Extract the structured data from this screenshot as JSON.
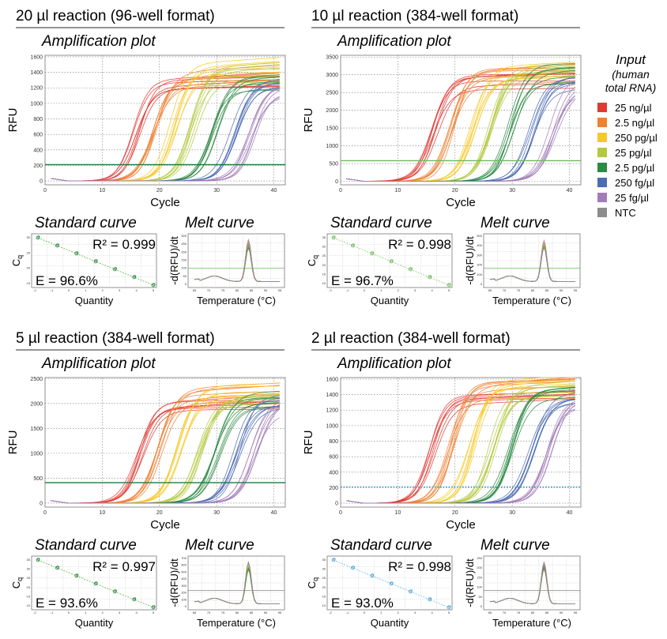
{
  "legend": {
    "title": "Input",
    "subtitle_line1": "(human",
    "subtitle_line2": "total RNA)",
    "items": [
      {
        "label": "25 ng/µl",
        "color": "#e03a33"
      },
      {
        "label": "2.5 ng/µl",
        "color": "#ef8132"
      },
      {
        "label": "250 pg/µl",
        "color": "#f7c928"
      },
      {
        "label": "25 pg/µl",
        "color": "#b4c940"
      },
      {
        "label": "2.5 pg/µl",
        "color": "#2b8a43"
      },
      {
        "label": "250 fg/µl",
        "color": "#4c6cb3"
      },
      {
        "label": "25 fg/µl",
        "color": "#a27cb8"
      },
      {
        "label": "NTC",
        "color": "#8c8c8c"
      }
    ]
  },
  "chart_data": [
    {
      "type": "line",
      "panel_title": "20 µl reaction (96-well format)",
      "title": "Amplification plot",
      "xlabel": "Cycle",
      "ylabel": "RFU",
      "xlim": [
        0,
        42
      ],
      "ylim": [
        -50,
        1620
      ],
      "x_ticks": [
        0,
        10,
        20,
        30,
        40
      ],
      "y_ticks": [
        0,
        200,
        400,
        600,
        800,
        1000,
        1200,
        1400,
        1600
      ],
      "threshold": 210,
      "threshold_color": "#1f7a3a",
      "series": [
        {
          "color": "#e03a33",
          "ct": 14,
          "plateau": [
            1150,
            1300
          ]
        },
        {
          "color": "#ef8132",
          "ct": 17,
          "plateau": [
            1200,
            1400
          ]
        },
        {
          "color": "#f7c928",
          "ct": 20.5,
          "plateau": [
            1300,
            1500
          ]
        },
        {
          "color": "#b4c940",
          "ct": 24,
          "plateau": [
            1250,
            1450
          ]
        },
        {
          "color": "#2b8a43",
          "ct": 27.5,
          "plateau": [
            1150,
            1350
          ]
        },
        {
          "color": "#4c6cb3",
          "ct": 31,
          "plateau": [
            1100,
            1300
          ]
        },
        {
          "color": "#a27cb8",
          "ct": 34,
          "plateau": [
            1050,
            1250
          ]
        }
      ],
      "standard_curve": {
        "title": "Standard curve",
        "xlabel": "Quantity",
        "ylabel": "C",
        "ylabel_sub": "q",
        "r2_label": "R² = 0.999",
        "e_label": "E = 96.6%",
        "point_color": "#2b8a43",
        "line_color": "#6dbb5a",
        "x_ticks": [
          "-2",
          "-1",
          "0",
          "1",
          "2",
          "3",
          "4",
          "5"
        ],
        "y_ticks": [
          "30",
          "25",
          "20",
          "15"
        ]
      },
      "melt_curve": {
        "title": "Melt curve",
        "xlabel": "Temperature (°C)",
        "ylabel": "-d(RFU)/dt",
        "peak_temp": 84,
        "y_ticks": [
          "300",
          "250",
          "200",
          "150",
          "100",
          "50",
          "0"
        ],
        "x_ticks": [
          "65",
          "70",
          "75",
          "80",
          "85",
          "90",
          "95"
        ],
        "threshold_color": "#6dbb5a"
      }
    },
    {
      "type": "line",
      "panel_title": "10 µl reaction (384-well format)",
      "title": "Amplification plot",
      "xlabel": "Cycle",
      "ylabel": "RFU",
      "xlim": [
        0,
        42
      ],
      "ylim": [
        -100,
        3550
      ],
      "x_ticks": [
        0,
        10,
        20,
        30,
        40
      ],
      "y_ticks": [
        0,
        500,
        1000,
        1500,
        2000,
        2500,
        3000,
        3500
      ],
      "threshold": 580,
      "threshold_color": "#6dbb5a",
      "series": [
        {
          "color": "#e03a33",
          "ct": 14.5,
          "plateau": [
            2500,
            3100
          ]
        },
        {
          "color": "#ef8132",
          "ct": 17.5,
          "plateau": [
            2600,
            3200
          ]
        },
        {
          "color": "#f7c928",
          "ct": 21,
          "plateau": [
            2700,
            3300
          ]
        },
        {
          "color": "#b4c940",
          "ct": 24.5,
          "plateau": [
            2700,
            3300
          ]
        },
        {
          "color": "#2b8a43",
          "ct": 28,
          "plateau": [
            2600,
            3350
          ]
        },
        {
          "color": "#4c6cb3",
          "ct": 31.5,
          "plateau": [
            2500,
            3100
          ]
        },
        {
          "color": "#a27cb8",
          "ct": 35,
          "plateau": [
            2300,
            3000
          ]
        }
      ],
      "standard_curve": {
        "title": "Standard curve",
        "xlabel": "Quantity",
        "ylabel": "C",
        "ylabel_sub": "q",
        "r2_label": "R² = 0.998",
        "e_label": "E = 96.7%",
        "point_color": "#6dbb5a",
        "line_color": "#9ad07f",
        "x_ticks": [
          "-2",
          "-1",
          "0",
          "1",
          "2",
          "3",
          "4",
          "5"
        ],
        "y_ticks": [
          "35",
          "30",
          "25",
          "20",
          "15",
          "10"
        ]
      },
      "melt_curve": {
        "title": "Melt curve",
        "xlabel": "Temperature (°C)",
        "ylabel": "-d(RFU)/dt",
        "peak_temp": 84,
        "y_ticks": [
          "500",
          "400",
          "300",
          "200",
          "100",
          "0"
        ],
        "x_ticks": [
          "65",
          "70",
          "75",
          "80",
          "85",
          "90",
          "95"
        ],
        "threshold_color": "#6dbb5a"
      }
    },
    {
      "type": "line",
      "panel_title": "5 µl reaction (384-well format)",
      "title": "Amplification plot",
      "xlabel": "Cycle",
      "ylabel": "RFU",
      "xlim": [
        0,
        42
      ],
      "ylim": [
        -80,
        2520
      ],
      "x_ticks": [
        0,
        10,
        20,
        30,
        40
      ],
      "y_ticks": [
        0,
        500,
        1000,
        1500,
        2000,
        2500
      ],
      "threshold": 410,
      "threshold_color": "#1f7a3a",
      "series": [
        {
          "color": "#e03a33",
          "ct": 14.5,
          "plateau": [
            1850,
            2050
          ]
        },
        {
          "color": "#ef8132",
          "ct": 18,
          "plateau": [
            1900,
            2300
          ]
        },
        {
          "color": "#f7c928",
          "ct": 21.5,
          "plateau": [
            2000,
            2350
          ]
        },
        {
          "color": "#b4c940",
          "ct": 25,
          "plateau": [
            1950,
            2300
          ]
        },
        {
          "color": "#2b8a43",
          "ct": 28,
          "plateau": [
            1900,
            2250
          ]
        },
        {
          "color": "#4c6cb3",
          "ct": 31.5,
          "plateau": [
            1850,
            2150
          ]
        },
        {
          "color": "#a27cb8",
          "ct": 34.5,
          "plateau": [
            1800,
            2050
          ]
        }
      ],
      "standard_curve": {
        "title": "Standard curve",
        "xlabel": "Quantity",
        "ylabel": "C",
        "ylabel_sub": "q",
        "r2_label": "R² = 0.997",
        "e_label": "E = 93.6%",
        "point_color": "#2b8a43",
        "line_color": "#6dbb5a",
        "x_ticks": [
          "-2",
          "-1",
          "0",
          "1",
          "2",
          "3",
          "4",
          "5"
        ],
        "y_ticks": [
          "35",
          "30",
          "25",
          "20",
          "15",
          "10"
        ]
      },
      "melt_curve": {
        "title": "Melt curve",
        "xlabel": "Temperature (°C)",
        "ylabel": "-d(RFU)/dt",
        "peak_temp": 84,
        "y_ticks": [
          "700",
          "600",
          "500",
          "400",
          "300",
          "200",
          "100",
          "0"
        ],
        "x_ticks": [
          "65",
          "70",
          "75",
          "80",
          "85",
          "90",
          "95"
        ],
        "threshold_color": "#888888"
      }
    },
    {
      "type": "line",
      "panel_title": "2 µl reaction (384-well format)",
      "title": "Amplification plot",
      "xlabel": "Cycle",
      "ylabel": "RFU",
      "xlim": [
        0,
        42
      ],
      "ylim": [
        -50,
        1620
      ],
      "x_ticks": [
        0,
        10,
        20,
        30,
        40
      ],
      "y_ticks": [
        0,
        200,
        400,
        600,
        800,
        1000,
        1200,
        1400,
        1600
      ],
      "threshold": 210,
      "threshold_color": "#4fa8d8",
      "series": [
        {
          "color": "#e03a33",
          "ct": 14,
          "plateau": [
            1250,
            1400
          ]
        },
        {
          "color": "#ef8132",
          "ct": 17.5,
          "plateau": [
            1350,
            1560
          ]
        },
        {
          "color": "#f7c928",
          "ct": 21,
          "plateau": [
            1400,
            1560
          ]
        },
        {
          "color": "#b4c940",
          "ct": 24.5,
          "plateau": [
            1350,
            1500
          ]
        },
        {
          "color": "#2b8a43",
          "ct": 28,
          "plateau": [
            1300,
            1450
          ]
        },
        {
          "color": "#4c6cb3",
          "ct": 31.5,
          "plateau": [
            1250,
            1400
          ]
        },
        {
          "color": "#a27cb8",
          "ct": 34.5,
          "plateau": [
            1200,
            1350
          ]
        }
      ],
      "standard_curve": {
        "title": "Standard curve",
        "xlabel": "Quantity",
        "ylabel": "C",
        "ylabel_sub": "q",
        "r2_label": "R² = 0.998",
        "e_label": "E = 93.0%",
        "point_color": "#4fa8d8",
        "line_color": "#7cc3e8",
        "x_ticks": [
          "-2",
          "-1",
          "0",
          "1",
          "2",
          "3",
          "4",
          "5"
        ],
        "y_ticks": [
          "35",
          "30",
          "25",
          "20",
          "15",
          "10"
        ]
      },
      "melt_curve": {
        "title": "Melt curve",
        "xlabel": "Temperature (°C)",
        "ylabel": "-d(RFU)/dt",
        "peak_temp": 84,
        "y_ticks": [
          "250",
          "200",
          "150",
          "100",
          "50",
          "0"
        ],
        "x_ticks": [
          "65",
          "70",
          "75",
          "80",
          "85",
          "90",
          "95"
        ],
        "threshold_color": "#888888"
      }
    }
  ]
}
